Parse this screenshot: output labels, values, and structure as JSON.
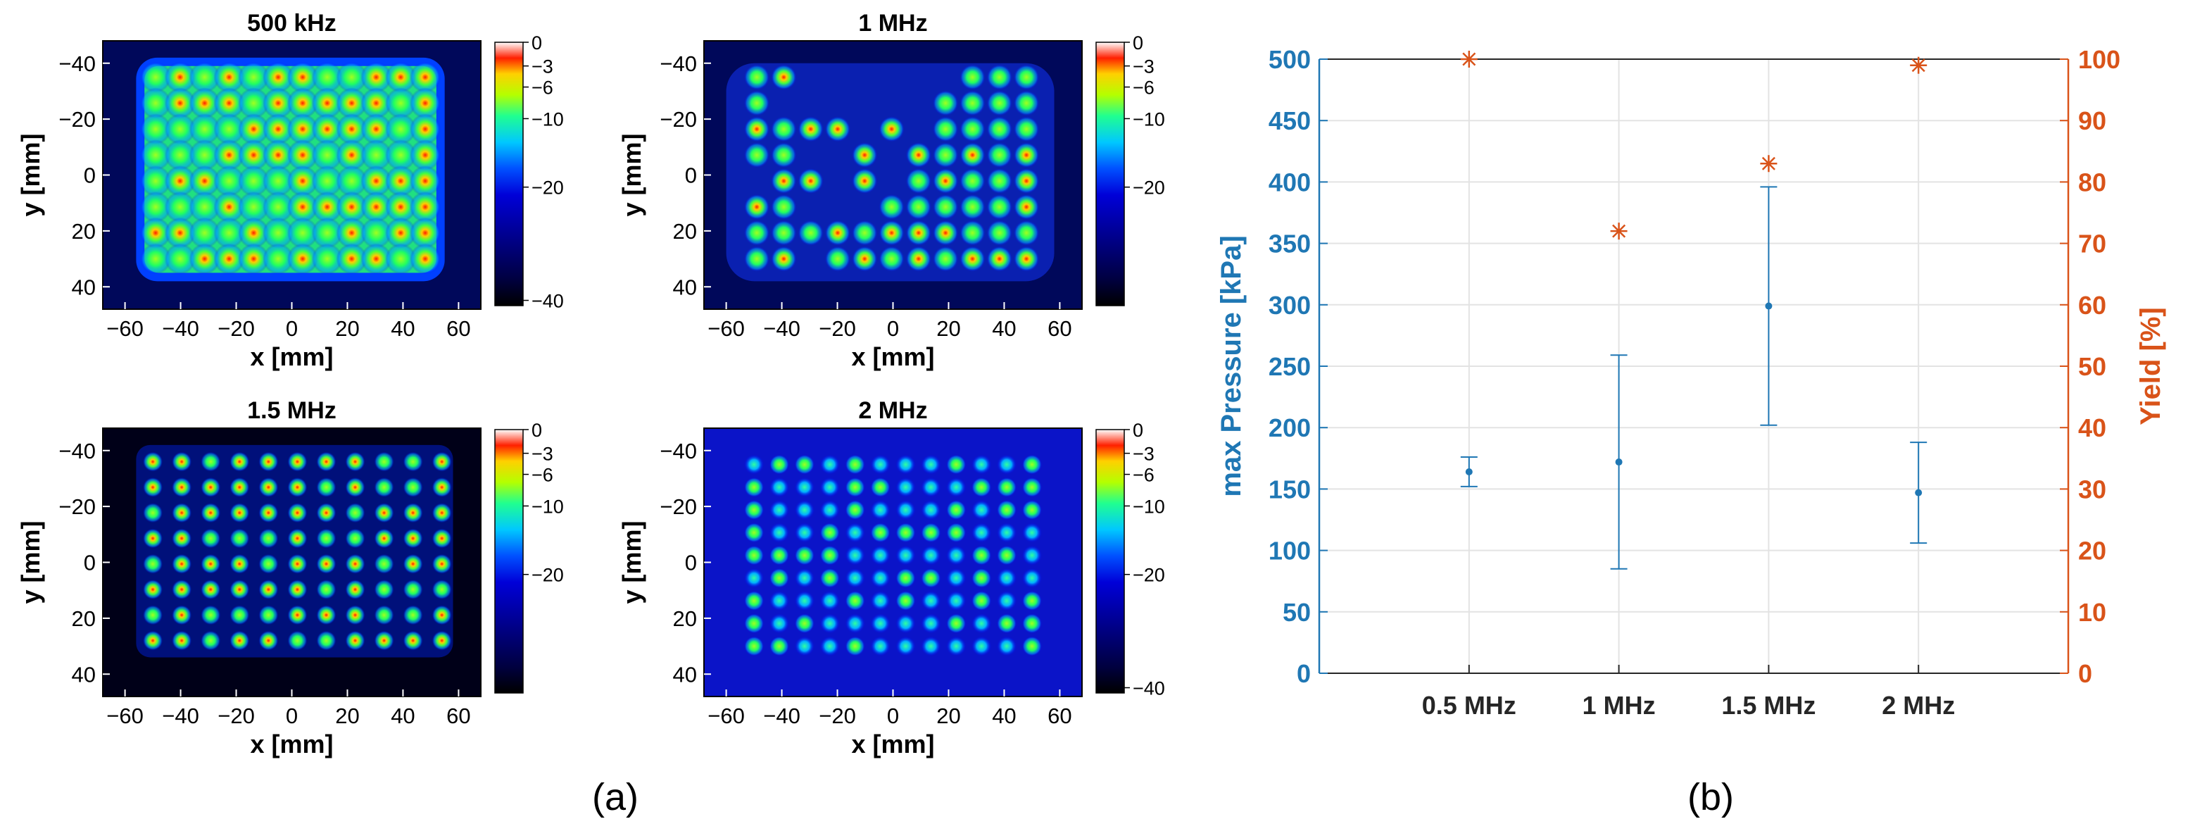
{
  "chart_data": [
    {
      "type": "heatmap",
      "title": "500 kHz",
      "xlabel": "x [mm]",
      "ylabel": "y [mm]",
      "xlim": [
        -68,
        68
      ],
      "ylim": [
        -48,
        48
      ],
      "xticks": [
        "−60",
        "−40",
        "−20",
        "0",
        "20",
        "40",
        "60"
      ],
      "yticks": [
        "−40",
        "−20",
        "0",
        "20",
        "40"
      ],
      "colorbar_ticks": [
        "0",
        "−3",
        "−6",
        "−10",
        "−20",
        "−40"
      ],
      "grid": {
        "cols": 12,
        "rows": 8,
        "x_from": -49,
        "x_to": 48,
        "y_from": -35,
        "y_to": 30
      },
      "pattern": "dense"
    },
    {
      "type": "heatmap",
      "title": "1 MHz",
      "xlabel": "x [mm]",
      "ylabel": "y [mm]",
      "xlim": [
        -68,
        68
      ],
      "ylim": [
        -48,
        48
      ],
      "xticks": [
        "−60",
        "−40",
        "−20",
        "0",
        "20",
        "40",
        "60"
      ],
      "yticks": [
        "−40",
        "−20",
        "0",
        "20",
        "40"
      ],
      "colorbar_ticks": [
        "0",
        "−3",
        "−6",
        "−10",
        "−20"
      ],
      "grid": {
        "cols": 11,
        "rows": 8,
        "x_from": -49,
        "x_to": 48,
        "y_from": -35,
        "y_to": 30
      },
      "pattern": "partial"
    },
    {
      "type": "heatmap",
      "title": "1.5 MHz",
      "xlabel": "x [mm]",
      "ylabel": "y [mm]",
      "xlim": [
        -68,
        68
      ],
      "ylim": [
        -48,
        48
      ],
      "xticks": [
        "−60",
        "−40",
        "−20",
        "0",
        "20",
        "40",
        "60"
      ],
      "yticks": [
        "−40",
        "−20",
        "0",
        "20",
        "40"
      ],
      "colorbar_ticks": [
        "0",
        "−3",
        "−6",
        "−10",
        "−20"
      ],
      "grid": {
        "cols": 11,
        "rows": 8,
        "x_from": -50,
        "x_to": 54,
        "y_from": -36,
        "y_to": 28
      },
      "pattern": "spots"
    },
    {
      "type": "heatmap",
      "title": "2 MHz",
      "xlabel": "x [mm]",
      "ylabel": "y [mm]",
      "xlim": [
        -68,
        68
      ],
      "ylim": [
        -48,
        48
      ],
      "xticks": [
        "−60",
        "−40",
        "−20",
        "0",
        "20",
        "40",
        "60"
      ],
      "yticks": [
        "−40",
        "−20",
        "0",
        "20",
        "40"
      ],
      "colorbar_ticks": [
        "0",
        "−3",
        "−6",
        "−10",
        "−20",
        "−40"
      ],
      "grid": {
        "cols": 12,
        "rows": 9,
        "x_from": -50,
        "x_to": 50,
        "y_from": -35,
        "y_to": 30
      },
      "pattern": "faint"
    },
    {
      "type": "scatter",
      "categories": [
        "0.5 MHz",
        "1 MHz",
        "1.5 MHz",
        "2 MHz"
      ],
      "x": [
        1,
        2,
        3,
        4
      ],
      "xlim": [
        0,
        5
      ],
      "series": [
        {
          "name": "max Pressure",
          "axis": "left",
          "marker": "point with error bars",
          "values": [
            164,
            172,
            299,
            147
          ],
          "lower": [
            152,
            85,
            202,
            106
          ],
          "upper": [
            176,
            259,
            396,
            188
          ]
        },
        {
          "name": "Yield",
          "axis": "right",
          "marker": "asterisk",
          "values": [
            100,
            72,
            83,
            99
          ]
        }
      ],
      "ylabel_left": "max Pressure [kPa]",
      "ylabel_right": "Yield [%]",
      "ylim_left": [
        0,
        500
      ],
      "ylim_right": [
        0,
        100
      ],
      "yticks_left": [
        "0",
        "50",
        "100",
        "150",
        "200",
        "250",
        "300",
        "350",
        "400",
        "450",
        "500"
      ],
      "yticks_right": [
        "0",
        "10",
        "20",
        "30",
        "40",
        "50",
        "60",
        "70",
        "80",
        "90",
        "100"
      ],
      "colors": {
        "left": "#1f77b4",
        "right": "#d95319"
      },
      "grid": true
    }
  ],
  "captions": {
    "a": "(a)",
    "b": "(b)"
  }
}
